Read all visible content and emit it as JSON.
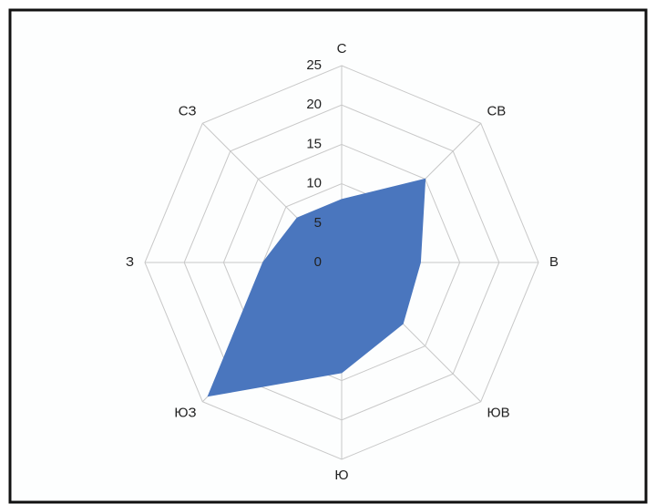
{
  "chart_data": {
    "type": "radar",
    "categories": [
      "С",
      "СВ",
      "В",
      "ЮВ",
      "Ю",
      "ЮЗ",
      "З",
      "СЗ"
    ],
    "series": [
      {
        "name": null,
        "color": "#4a76be",
        "values": [
          8,
          15,
          10,
          11,
          14,
          24,
          10,
          8
        ]
      }
    ],
    "ylim": [
      0,
      25
    ],
    "yticks": [
      0,
      5,
      10,
      15,
      20,
      25
    ],
    "grid": true
  }
}
